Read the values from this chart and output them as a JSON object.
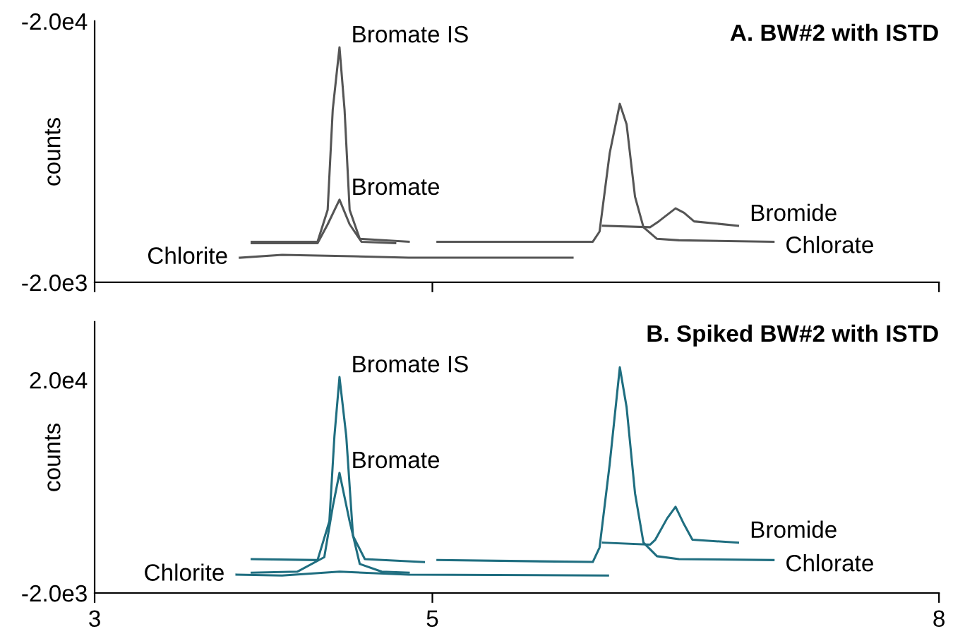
{
  "chart_data": [
    {
      "type": "line",
      "title": "A. BW#2 with ISTD",
      "ylabel": "counts",
      "xlim": [
        3,
        8
      ],
      "xticks": [
        3,
        5,
        8
      ],
      "ylim": [
        -2000,
        -20000
      ],
      "yticks": [
        {
          "value": -20000,
          "label": "-2.0e4"
        },
        {
          "value": -2000,
          "label": "-2.0e3"
        }
      ],
      "tick_labels": "y",
      "grid": false,
      "legend": false,
      "marker": "none",
      "line_style": "solid",
      "series": [
        {
          "color": "#555555",
          "x": [
            3.93,
            4.32,
            4.38,
            4.41,
            4.45,
            4.48,
            4.51,
            4.57,
            4.86
          ],
          "values": [
            -4800,
            -4800,
            -7000,
            -13900,
            -18200,
            -13900,
            -7000,
            -5000,
            -4800
          ]
        },
        {
          "color": "#555555",
          "x": [
            3.93,
            4.32,
            4.38,
            4.45,
            4.51,
            4.58,
            4.78
          ],
          "values": [
            -4700,
            -4700,
            -6000,
            -7700,
            -6000,
            -4800,
            -4700
          ]
        },
        {
          "color": "#555555",
          "x": [
            3.86,
            4.11,
            4.53,
            4.86,
            5.83
          ],
          "values": [
            -3700,
            -3900,
            -3800,
            -3700,
            -3700
          ]
        },
        {
          "color": "#555555",
          "x": [
            5.03,
            5.95,
            5.99,
            6.05,
            6.11,
            6.15,
            6.2,
            6.25,
            6.33,
            6.46,
            7.02
          ],
          "values": [
            -4800,
            -4800,
            -5500,
            -10900,
            -14300,
            -12900,
            -7900,
            -5800,
            -5000,
            -4900,
            -4800
          ]
        },
        {
          "color": "#555555",
          "x": [
            6.01,
            6.29,
            6.34,
            6.44,
            6.49,
            6.55,
            6.81
          ],
          "values": [
            -5900,
            -5800,
            -6200,
            -7100,
            -6800,
            -6200,
            -5900
          ]
        }
      ],
      "annotations": [
        {
          "text": "Bromate IS",
          "x": 4.45,
          "y": -18200
        },
        {
          "text": "Bromate",
          "x": 4.45,
          "y": -7700
        },
        {
          "text": "Chlorite",
          "x": 3.86,
          "y": -3700
        },
        {
          "text": "Bromide",
          "x": 6.81,
          "y": -5900
        },
        {
          "text": "Chlorate",
          "x": 7.02,
          "y": -4800
        }
      ]
    },
    {
      "type": "line",
      "title": "B. Spiked BW#2 with ISTD",
      "ylabel": "counts",
      "xlim": [
        3,
        8
      ],
      "xticks": [
        3,
        5,
        8
      ],
      "ylim": [
        -2000,
        26000
      ],
      "yticks": [
        {
          "value": 20000,
          "label": "2.0e4"
        },
        {
          "value": -2000,
          "label": "-2.0e3"
        }
      ],
      "grid": false,
      "legend": false,
      "marker": "none",
      "line_style": "solid",
      "series": [
        {
          "color": "#1f6e80",
          "x": [
            3.93,
            4.32,
            4.39,
            4.42,
            4.45,
            4.49,
            4.53,
            4.6,
            4.95
          ],
          "values": [
            1500,
            1400,
            5400,
            14200,
            20300,
            14200,
            3900,
            1500,
            1200
          ]
        },
        {
          "color": "#1f6e80",
          "x": [
            3.93,
            4.2,
            4.36,
            4.41,
            4.45,
            4.51,
            4.57,
            4.7,
            4.86
          ],
          "values": [
            100,
            200,
            1700,
            6900,
            10400,
            5400,
            1000,
            200,
            100
          ]
        },
        {
          "color": "#1f6e80",
          "x": [
            3.84,
            4.11,
            4.45,
            4.86,
            6.04
          ],
          "values": [
            -100,
            -200,
            200,
            -100,
            -200
          ]
        },
        {
          "color": "#1f6e80",
          "x": [
            5.03,
            5.95,
            5.99,
            6.05,
            6.11,
            6.15,
            6.2,
            6.25,
            6.33,
            6.46,
            7.02
          ],
          "values": [
            1400,
            1200,
            2700,
            11300,
            21300,
            17200,
            8300,
            3200,
            1800,
            1500,
            1400
          ]
        },
        {
          "color": "#1f6e80",
          "x": [
            6.01,
            6.29,
            6.32,
            6.39,
            6.44,
            6.49,
            6.54,
            6.81
          ],
          "values": [
            3200,
            3000,
            3500,
            5700,
            6900,
            5100,
            3500,
            3200
          ]
        }
      ],
      "annotations": [
        {
          "text": "Bromate IS",
          "x": 4.45,
          "y": 20300
        },
        {
          "text": "Bromate",
          "x": 4.45,
          "y": 10400
        },
        {
          "text": "Chlorite",
          "x": 3.84,
          "y": -100
        },
        {
          "text": "Bromide",
          "x": 6.81,
          "y": 3200
        },
        {
          "text": "Chlorate",
          "x": 7.02,
          "y": 1400
        }
      ]
    }
  ]
}
